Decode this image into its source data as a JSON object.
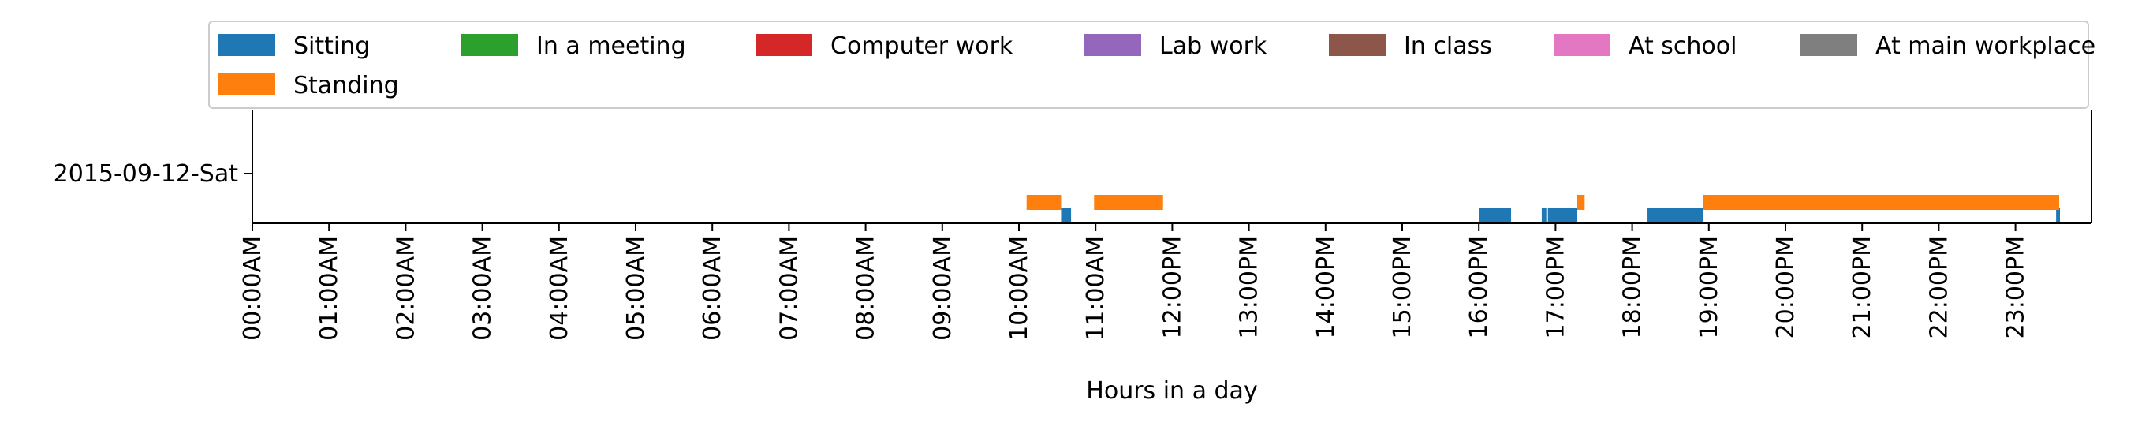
{
  "chart_data": {
    "type": "bar",
    "xlabel": "Hours in a day",
    "ylabel": "",
    "xlim": [
      0,
      24
    ],
    "legend_position": "top",
    "grid": false,
    "categories": [
      "2015-09-12-Sat"
    ],
    "x_ticks": [
      {
        "value": 0,
        "label": "00:00AM"
      },
      {
        "value": 1,
        "label": "01:00AM"
      },
      {
        "value": 2,
        "label": "02:00AM"
      },
      {
        "value": 3,
        "label": "03:00AM"
      },
      {
        "value": 4,
        "label": "04:00AM"
      },
      {
        "value": 5,
        "label": "05:00AM"
      },
      {
        "value": 6,
        "label": "06:00AM"
      },
      {
        "value": 7,
        "label": "07:00AM"
      },
      {
        "value": 8,
        "label": "08:00AM"
      },
      {
        "value": 9,
        "label": "09:00AM"
      },
      {
        "value": 10,
        "label": "10:00AM"
      },
      {
        "value": 11,
        "label": "11:00AM"
      },
      {
        "value": 12,
        "label": "12:00PM"
      },
      {
        "value": 13,
        "label": "13:00PM"
      },
      {
        "value": 14,
        "label": "14:00PM"
      },
      {
        "value": 15,
        "label": "15:00PM"
      },
      {
        "value": 16,
        "label": "16:00PM"
      },
      {
        "value": 17,
        "label": "17:00PM"
      },
      {
        "value": 18,
        "label": "18:00PM"
      },
      {
        "value": 19,
        "label": "19:00PM"
      },
      {
        "value": 20,
        "label": "20:00PM"
      },
      {
        "value": 21,
        "label": "21:00PM"
      },
      {
        "value": 22,
        "label": "22:00PM"
      },
      {
        "value": 23,
        "label": "23:00PM"
      }
    ],
    "series": [
      {
        "name": "Sitting",
        "color": "#1f77b4",
        "level": 0,
        "intervals": [
          [
            10.55,
            10.68
          ],
          [
            16.0,
            16.42
          ],
          [
            16.82,
            16.88
          ],
          [
            16.9,
            17.28
          ],
          [
            18.2,
            18.93
          ],
          [
            23.53,
            23.58
          ]
        ]
      },
      {
        "name": "Standing",
        "color": "#ff7f0e",
        "level": 1,
        "intervals": [
          [
            10.1,
            10.55
          ],
          [
            10.98,
            11.88
          ],
          [
            17.28,
            17.38
          ],
          [
            18.93,
            23.57
          ]
        ]
      },
      {
        "name": "In a meeting",
        "color": "#2ca02c",
        "level": 2,
        "intervals": []
      },
      {
        "name": "Computer work",
        "color": "#d62728",
        "level": 2,
        "intervals": []
      },
      {
        "name": "Lab work",
        "color": "#9467bd",
        "level": 2,
        "intervals": []
      },
      {
        "name": "In class",
        "color": "#8c564b",
        "level": 2,
        "intervals": []
      },
      {
        "name": "At school",
        "color": "#e377c2",
        "level": 2,
        "intervals": []
      },
      {
        "name": "At main workplace",
        "color": "#7f7f7f",
        "level": 2,
        "intervals": []
      }
    ]
  }
}
